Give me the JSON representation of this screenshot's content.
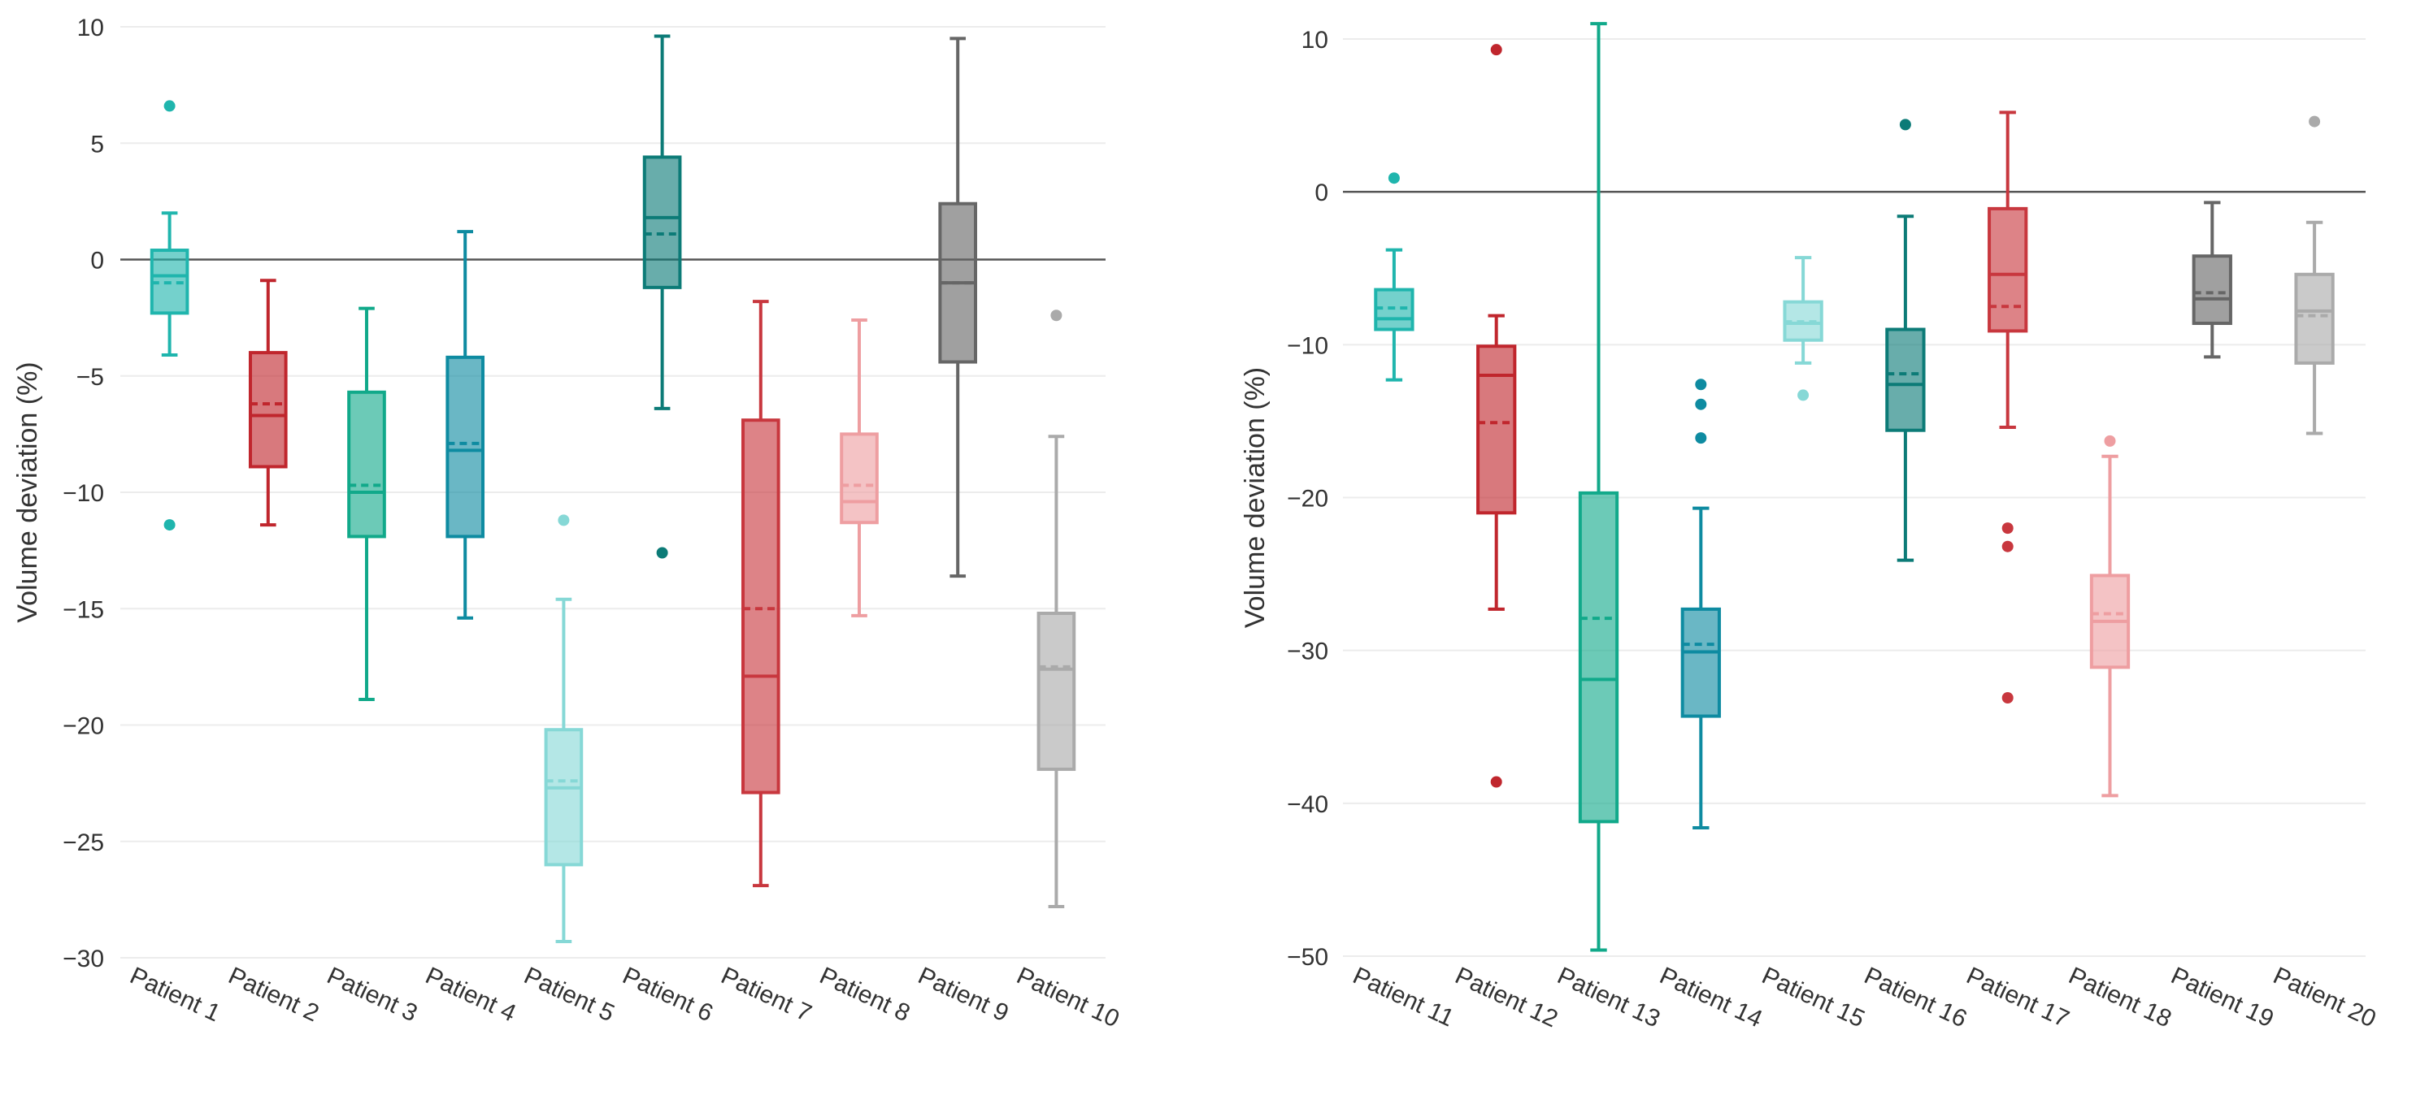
{
  "chart_data": [
    {
      "type": "box",
      "ylabel": "Volume deviation (%)",
      "ylim": [
        -31,
        10
      ],
      "yticks": [
        10,
        5,
        0,
        -5,
        -10,
        -15,
        -20,
        -25,
        -30
      ],
      "reference_line": 0,
      "mean_line": "dashed",
      "categories": [
        "Patient 1",
        "Patient 2",
        "Patient 3",
        "Patient 4",
        "Patient 5",
        "Patient 6",
        "Patient 7",
        "Patient 8",
        "Patient 9",
        "Patient 10"
      ],
      "series": [
        {
          "name": "Patient 1",
          "color": "#1fb5ad",
          "whisker_low": -4.1,
          "q1": -2.3,
          "median": -0.7,
          "q3": 0.4,
          "whisker_high": 2.0,
          "mean": -1.0,
          "outliers": [
            6.6,
            -11.4
          ]
        },
        {
          "name": "Patient 2",
          "color": "#c0262d",
          "whisker_low": -11.4,
          "q1": -8.9,
          "median": -6.7,
          "q3": -4.0,
          "whisker_high": -0.9,
          "mean": -6.2,
          "outliers": []
        },
        {
          "name": "Patient 3",
          "color": "#11a98a",
          "whisker_low": -18.9,
          "q1": -11.9,
          "median": -10.0,
          "q3": -5.7,
          "whisker_high": -2.1,
          "mean": -9.7,
          "outliers": []
        },
        {
          "name": "Patient 4",
          "color": "#0e8ba1",
          "whisker_low": -15.4,
          "q1": -11.9,
          "median": -8.2,
          "q3": -4.2,
          "whisker_high": 1.2,
          "mean": -7.9,
          "outliers": []
        },
        {
          "name": "Patient 5",
          "color": "#86d8d6",
          "whisker_low": -29.3,
          "q1": -26.0,
          "median": -22.7,
          "q3": -20.2,
          "whisker_high": -14.6,
          "mean": -22.4,
          "outliers": [
            -11.2
          ]
        },
        {
          "name": "Patient 6",
          "color": "#0c7b77",
          "whisker_low": -6.4,
          "q1": -1.2,
          "median": 1.8,
          "q3": 4.4,
          "whisker_high": 9.6,
          "mean": 1.1,
          "outliers": [
            -12.6
          ]
        },
        {
          "name": "Patient 7",
          "color": "#c8373e",
          "whisker_low": -26.9,
          "q1": -22.9,
          "median": -17.9,
          "q3": -6.9,
          "whisker_high": -1.8,
          "mean": -15.0,
          "outliers": []
        },
        {
          "name": "Patient 8",
          "color": "#ee9ea1",
          "whisker_low": -15.3,
          "q1": -11.3,
          "median": -10.4,
          "q3": -7.5,
          "whisker_high": -2.6,
          "mean": -9.7,
          "outliers": []
        },
        {
          "name": "Patient 9",
          "color": "#666666",
          "whisker_low": -13.6,
          "q1": -4.4,
          "median": -1.0,
          "q3": 2.4,
          "whisker_high": 9.5,
          "mean": -1.0,
          "outliers": []
        },
        {
          "name": "Patient 10",
          "color": "#aaaaaa",
          "whisker_low": -27.8,
          "q1": -21.9,
          "median": -17.6,
          "q3": -15.2,
          "whisker_high": -7.6,
          "mean": -17.5,
          "outliers": [
            -2.4
          ]
        }
      ]
    },
    {
      "type": "box",
      "ylabel": "Volume deviation (%)",
      "ylim": [
        -51,
        11
      ],
      "yticks": [
        10,
        0,
        -10,
        -20,
        -30,
        -40,
        -50
      ],
      "reference_line": 0,
      "mean_line": "dashed",
      "categories": [
        "Patient 11",
        "Patient 12",
        "Patient 13",
        "Patient 14",
        "Patient 15",
        "Patient 16",
        "Patient 17",
        "Patient 18",
        "Patient 19",
        "Patient 20"
      ],
      "series": [
        {
          "name": "Patient 11",
          "color": "#1fb5ad",
          "whisker_low": -12.3,
          "q1": -9.0,
          "median": -8.3,
          "q3": -6.4,
          "whisker_high": -3.8,
          "mean": -7.6,
          "outliers": [
            0.9
          ]
        },
        {
          "name": "Patient 12",
          "color": "#c0262d",
          "whisker_low": -27.3,
          "q1": -21.0,
          "median": -12.0,
          "q3": -10.1,
          "whisker_high": -8.1,
          "mean": -15.1,
          "outliers": [
            9.3,
            -38.6
          ]
        },
        {
          "name": "Patient 13",
          "color": "#11a98a",
          "whisker_low": -49.6,
          "q1": -41.2,
          "median": -31.9,
          "q3": -19.7,
          "whisker_high": 11.0,
          "mean": -27.9,
          "outliers": []
        },
        {
          "name": "Patient 14",
          "color": "#0e8ba1",
          "whisker_low": -41.6,
          "q1": -34.3,
          "median": -30.1,
          "q3": -27.3,
          "whisker_high": -20.7,
          "mean": -29.6,
          "outliers": [
            -12.6,
            -13.9,
            -16.1
          ]
        },
        {
          "name": "Patient 15",
          "color": "#86d8d6",
          "whisker_low": -11.2,
          "q1": -9.7,
          "median": -8.6,
          "q3": -7.2,
          "whisker_high": -4.3,
          "mean": -8.5,
          "outliers": [
            -13.3
          ]
        },
        {
          "name": "Patient 16",
          "color": "#0c7b77",
          "whisker_low": -24.1,
          "q1": -15.6,
          "median": -12.6,
          "q3": -9.0,
          "whisker_high": -1.6,
          "mean": -11.9,
          "outliers": [
            4.4
          ]
        },
        {
          "name": "Patient 17",
          "color": "#c8373e",
          "whisker_low": -15.4,
          "q1": -9.1,
          "median": -5.4,
          "q3": -1.1,
          "whisker_high": 5.2,
          "mean": -7.5,
          "outliers": [
            -22.0,
            -23.2,
            -33.1
          ]
        },
        {
          "name": "Patient 18",
          "color": "#ee9ea1",
          "whisker_low": -39.5,
          "q1": -31.1,
          "median": -28.1,
          "q3": -25.1,
          "whisker_high": -17.3,
          "mean": -27.6,
          "outliers": [
            -16.3
          ]
        },
        {
          "name": "Patient 19",
          "color": "#666666",
          "whisker_low": -10.8,
          "q1": -8.6,
          "median": -7.0,
          "q3": -4.2,
          "whisker_high": -0.7,
          "mean": -6.6,
          "outliers": []
        },
        {
          "name": "Patient 20",
          "color": "#aaaaaa",
          "whisker_low": -15.8,
          "q1": -11.2,
          "median": -7.8,
          "q3": -5.4,
          "whisker_high": -2.0,
          "mean": -8.1,
          "outliers": [
            4.6
          ]
        }
      ]
    }
  ]
}
